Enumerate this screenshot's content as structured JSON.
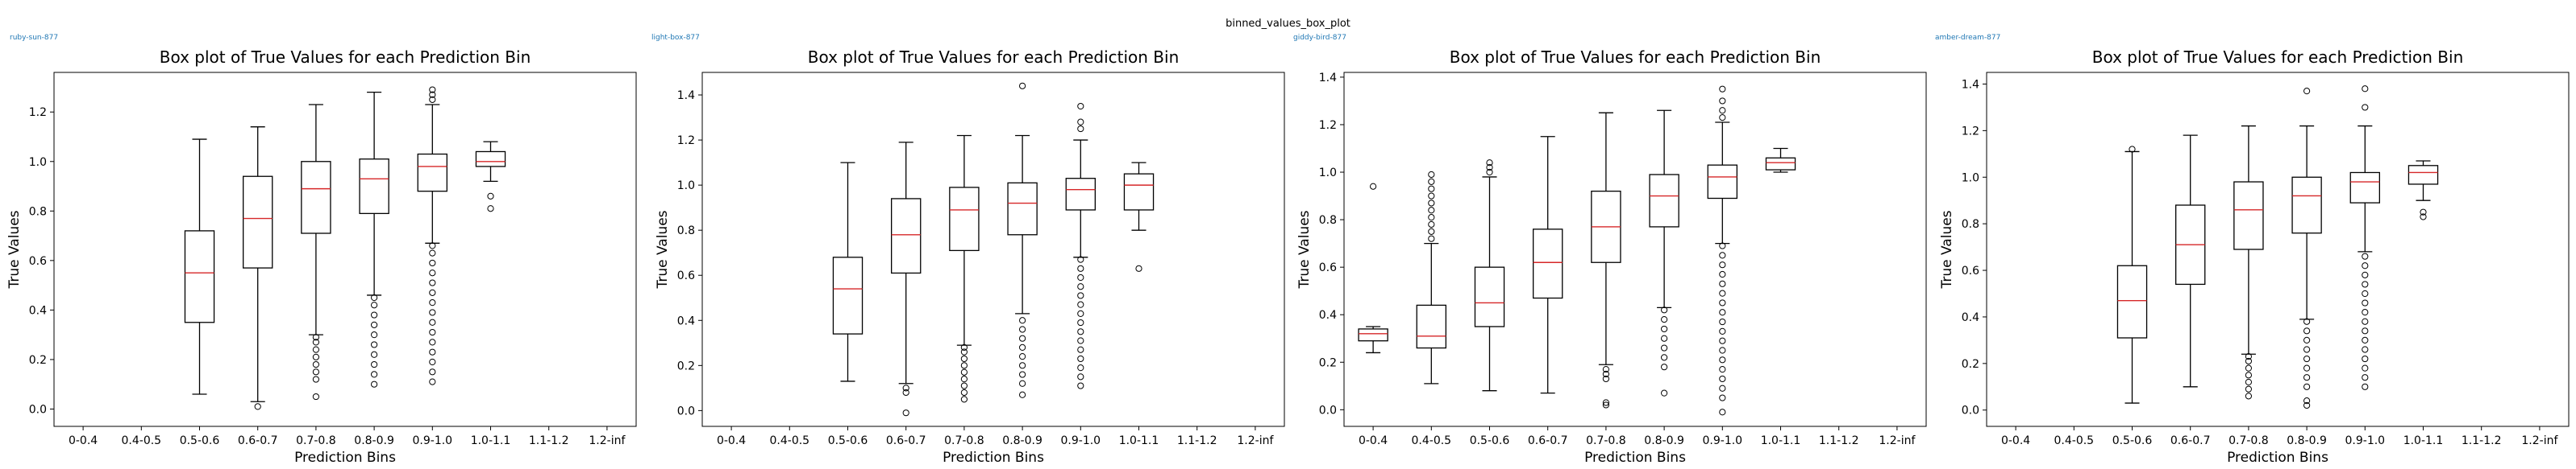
{
  "suptitle": "binned_values_box_plot",
  "runs": [
    "ruby-sun-877",
    "light-box-877",
    "giddy-bird-877",
    "amber-dream-877"
  ],
  "colors": {
    "median": "#d62728",
    "box": "#000000",
    "run_label": "#1f77b4"
  },
  "chart_data": [
    {
      "type": "box",
      "title": "Box plot of True Values for each Prediction Bin",
      "xlabel": "Prediction Bins",
      "ylabel": "True Values",
      "categories": [
        "0-0.4",
        "0.4-0.5",
        "0.5-0.6",
        "0.6-0.7",
        "0.7-0.8",
        "0.8-0.9",
        "0.9-1.0",
        "1.0-1.1",
        "1.1-1.2",
        "1.2-inf"
      ],
      "ylim": [
        -0.07,
        1.36
      ],
      "yticks": [
        "0.0",
        "0.2",
        "0.4",
        "0.6",
        "0.8",
        "1.0",
        "1.2"
      ],
      "boxes": [
        null,
        null,
        {
          "whislo": 0.06,
          "q1": 0.35,
          "med": 0.55,
          "q3": 0.72,
          "whishi": 1.09,
          "fliers": []
        },
        {
          "whislo": 0.03,
          "q1": 0.57,
          "med": 0.77,
          "q3": 0.94,
          "whishi": 1.14,
          "fliers": [
            0.01
          ]
        },
        {
          "whislo": 0.3,
          "q1": 0.71,
          "med": 0.89,
          "q3": 1.0,
          "whishi": 1.23,
          "fliers": [
            0.05,
            0.12,
            0.15,
            0.18,
            0.21,
            0.24,
            0.27,
            0.29
          ]
        },
        {
          "whislo": 0.46,
          "q1": 0.79,
          "med": 0.93,
          "q3": 1.01,
          "whishi": 1.28,
          "fliers": [
            0.1,
            0.14,
            0.18,
            0.22,
            0.26,
            0.3,
            0.34,
            0.38,
            0.42,
            0.45
          ]
        },
        {
          "whislo": 0.67,
          "q1": 0.88,
          "med": 0.98,
          "q3": 1.03,
          "whishi": 1.23,
          "fliers": [
            0.11,
            0.15,
            0.19,
            0.23,
            0.27,
            0.31,
            0.35,
            0.39,
            0.43,
            0.47,
            0.51,
            0.55,
            0.59,
            0.63,
            0.66,
            1.25,
            1.27,
            1.29
          ]
        },
        {
          "whislo": 0.92,
          "q1": 0.98,
          "med": 1.0,
          "q3": 1.04,
          "whishi": 1.08,
          "fliers": [
            0.81,
            0.86
          ]
        },
        null,
        null
      ]
    },
    {
      "type": "box",
      "title": "Box plot of True Values for each Prediction Bin",
      "xlabel": "Prediction Bins",
      "ylabel": "True Values",
      "categories": [
        "0-0.4",
        "0.4-0.5",
        "0.5-0.6",
        "0.6-0.7",
        "0.7-0.8",
        "0.8-0.9",
        "0.9-1.0",
        "1.0-1.1",
        "1.1-1.2",
        "1.2-inf"
      ],
      "ylim": [
        -0.07,
        1.5
      ],
      "yticks": [
        "0.0",
        "0.2",
        "0.4",
        "0.6",
        "0.8",
        "1.0",
        "1.2",
        "1.4"
      ],
      "boxes": [
        null,
        null,
        {
          "whislo": 0.13,
          "q1": 0.34,
          "med": 0.54,
          "q3": 0.68,
          "whishi": 1.1,
          "fliers": []
        },
        {
          "whislo": 0.12,
          "q1": 0.61,
          "med": 0.78,
          "q3": 0.94,
          "whishi": 1.19,
          "fliers": [
            -0.01,
            0.08,
            0.1
          ]
        },
        {
          "whislo": 0.29,
          "q1": 0.71,
          "med": 0.89,
          "q3": 0.99,
          "whishi": 1.22,
          "fliers": [
            0.05,
            0.08,
            0.11,
            0.14,
            0.17,
            0.2,
            0.23,
            0.26,
            0.28
          ]
        },
        {
          "whislo": 0.43,
          "q1": 0.78,
          "med": 0.92,
          "q3": 1.01,
          "whishi": 1.22,
          "fliers": [
            0.07,
            0.12,
            0.16,
            0.2,
            0.24,
            0.28,
            0.32,
            0.36,
            0.4,
            1.44
          ]
        },
        {
          "whislo": 0.68,
          "q1": 0.89,
          "med": 0.98,
          "q3": 1.03,
          "whishi": 1.2,
          "fliers": [
            0.11,
            0.15,
            0.19,
            0.23,
            0.27,
            0.31,
            0.35,
            0.39,
            0.43,
            0.47,
            0.51,
            0.55,
            0.59,
            0.63,
            0.67,
            1.25,
            1.28,
            1.35
          ]
        },
        {
          "whislo": 0.8,
          "q1": 0.89,
          "med": 1.0,
          "q3": 1.05,
          "whishi": 1.1,
          "fliers": [
            0.63
          ]
        },
        null,
        null
      ]
    },
    {
      "type": "box",
      "title": "Box plot of True Values for each Prediction Bin",
      "xlabel": "Prediction Bins",
      "ylabel": "True Values",
      "categories": [
        "0-0.4",
        "0.4-0.5",
        "0.5-0.6",
        "0.6-0.7",
        "0.7-0.8",
        "0.8-0.9",
        "0.9-1.0",
        "1.0-1.1",
        "1.1-1.2",
        "1.2-inf"
      ],
      "ylim": [
        -0.07,
        1.42
      ],
      "yticks": [
        "0.0",
        "0.2",
        "0.4",
        "0.6",
        "0.8",
        "1.0",
        "1.2",
        "1.4"
      ],
      "boxes": [
        {
          "whislo": 0.24,
          "q1": 0.29,
          "med": 0.32,
          "q3": 0.34,
          "whishi": 0.35,
          "fliers": [
            0.94
          ]
        },
        {
          "whislo": 0.11,
          "q1": 0.26,
          "med": 0.31,
          "q3": 0.44,
          "whishi": 0.7,
          "fliers": [
            0.72,
            0.75,
            0.78,
            0.81,
            0.84,
            0.87,
            0.9,
            0.93,
            0.96,
            0.99
          ]
        },
        {
          "whislo": 0.08,
          "q1": 0.35,
          "med": 0.45,
          "q3": 0.6,
          "whishi": 0.98,
          "fliers": [
            1.0,
            1.02,
            1.04
          ]
        },
        {
          "whislo": 0.07,
          "q1": 0.47,
          "med": 0.62,
          "q3": 0.76,
          "whishi": 1.15,
          "fliers": []
        },
        {
          "whislo": 0.19,
          "q1": 0.62,
          "med": 0.77,
          "q3": 0.92,
          "whishi": 1.25,
          "fliers": [
            0.02,
            0.03,
            0.13,
            0.15,
            0.17
          ]
        },
        {
          "whislo": 0.43,
          "q1": 0.77,
          "med": 0.9,
          "q3": 0.99,
          "whishi": 1.26,
          "fliers": [
            0.07,
            0.18,
            0.22,
            0.26,
            0.3,
            0.34,
            0.38,
            0.42
          ]
        },
        {
          "whislo": 0.7,
          "q1": 0.89,
          "med": 0.98,
          "q3": 1.03,
          "whishi": 1.21,
          "fliers": [
            -0.01,
            0.05,
            0.09,
            0.13,
            0.17,
            0.21,
            0.25,
            0.29,
            0.33,
            0.37,
            0.41,
            0.45,
            0.49,
            0.53,
            0.57,
            0.61,
            0.65,
            0.69,
            1.23,
            1.26,
            1.3,
            1.35
          ]
        },
        {
          "whislo": 1.0,
          "q1": 1.01,
          "med": 1.04,
          "q3": 1.06,
          "whishi": 1.1,
          "fliers": []
        },
        null,
        null
      ]
    },
    {
      "type": "box",
      "title": "Box plot of True Values for each Prediction Bin",
      "xlabel": "Prediction Bins",
      "ylabel": "True Values",
      "categories": [
        "0-0.4",
        "0.4-0.5",
        "0.5-0.6",
        "0.6-0.7",
        "0.7-0.8",
        "0.8-0.9",
        "0.9-1.0",
        "1.0-1.1",
        "1.1-1.2",
        "1.2-inf"
      ],
      "ylim": [
        -0.07,
        1.45
      ],
      "yticks": [
        "0.0",
        "0.2",
        "0.4",
        "0.6",
        "0.8",
        "1.0",
        "1.2",
        "1.4"
      ],
      "boxes": [
        null,
        null,
        {
          "whislo": 0.03,
          "q1": 0.31,
          "med": 0.47,
          "q3": 0.62,
          "whishi": 1.11,
          "fliers": [
            1.12
          ]
        },
        {
          "whislo": 0.1,
          "q1": 0.54,
          "med": 0.71,
          "q3": 0.88,
          "whishi": 1.18,
          "fliers": []
        },
        {
          "whislo": 0.24,
          "q1": 0.69,
          "med": 0.86,
          "q3": 0.98,
          "whishi": 1.22,
          "fliers": [
            0.06,
            0.09,
            0.12,
            0.15,
            0.18,
            0.21,
            0.23
          ]
        },
        {
          "whislo": 0.39,
          "q1": 0.76,
          "med": 0.92,
          "q3": 1.0,
          "whishi": 1.22,
          "fliers": [
            0.02,
            0.04,
            0.1,
            0.14,
            0.18,
            0.22,
            0.26,
            0.3,
            0.34,
            0.38,
            1.37
          ]
        },
        {
          "whislo": 0.68,
          "q1": 0.89,
          "med": 0.98,
          "q3": 1.02,
          "whishi": 1.22,
          "fliers": [
            0.1,
            0.14,
            0.18,
            0.22,
            0.26,
            0.3,
            0.34,
            0.38,
            0.42,
            0.46,
            0.5,
            0.54,
            0.58,
            0.62,
            0.66,
            1.3,
            1.38
          ]
        },
        {
          "whislo": 0.9,
          "q1": 0.97,
          "med": 1.02,
          "q3": 1.05,
          "whishi": 1.07,
          "fliers": [
            0.83,
            0.85
          ]
        },
        null,
        null
      ]
    }
  ]
}
